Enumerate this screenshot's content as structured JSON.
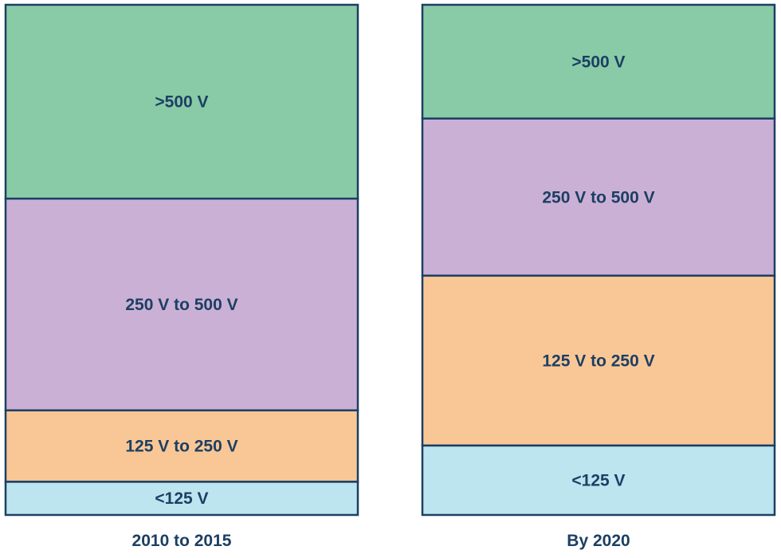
{
  "chart_data": {
    "type": "bar",
    "stacked": true,
    "normalized": true,
    "unit": "percent",
    "colors": {
      ">500 V": "#89cba6",
      "250 V to 500 V": "#cbb0d6",
      "125 V to 250 V": "#f9c796",
      "<125 V": "#bce5f0",
      "border": "#1c3f63"
    },
    "categories": [
      "2010 to 2015",
      "By 2020"
    ],
    "columns": [
      {
        "label": "2010 to 2015",
        "segments": [
          {
            "label": ">500 V",
            "value": 38
          },
          {
            "label": "250 V to 500 V",
            "value": 41.5
          },
          {
            "label": "125 V to 250 V",
            "value": 14
          },
          {
            "label": "<125 V",
            "value": 6.5
          }
        ]
      },
      {
        "label": "By 2020",
        "segments": [
          {
            "label": ">500 V",
            "value": 22.3
          },
          {
            "label": "250 V to 500 V",
            "value": 30.8
          },
          {
            "label": "125 V to 250 V",
            "value": 33.3
          },
          {
            "label": "<125 V",
            "value": 13.6
          }
        ]
      }
    ]
  }
}
